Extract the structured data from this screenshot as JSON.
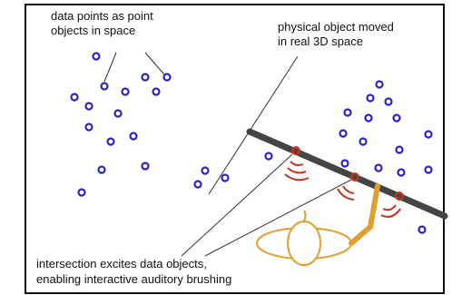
{
  "labels": {
    "data_points": [
      "data points as point",
      "objects in space"
    ],
    "physical_object": [
      "physical object moved",
      "in real 3D space"
    ],
    "intersection": [
      "intersection excites data objects,",
      "enabling interactive auditory brushing"
    ]
  }
}
